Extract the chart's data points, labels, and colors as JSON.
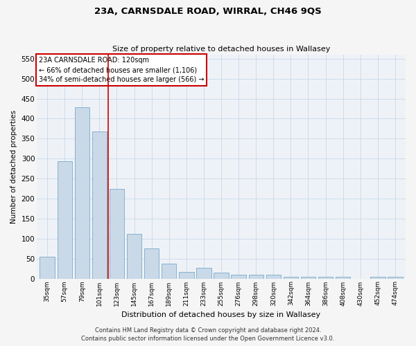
{
  "title": "23A, CARNSDALE ROAD, WIRRAL, CH46 9QS",
  "subtitle": "Size of property relative to detached houses in Wallasey",
  "xlabel": "Distribution of detached houses by size in Wallasey",
  "ylabel": "Number of detached properties",
  "categories": [
    "35sqm",
    "57sqm",
    "79sqm",
    "101sqm",
    "123sqm",
    "145sqm",
    "167sqm",
    "189sqm",
    "211sqm",
    "233sqm",
    "255sqm",
    "276sqm",
    "298sqm",
    "320sqm",
    "342sqm",
    "364sqm",
    "386sqm",
    "408sqm",
    "430sqm",
    "452sqm",
    "474sqm"
  ],
  "values": [
    55,
    293,
    428,
    368,
    224,
    112,
    75,
    38,
    16,
    26,
    14,
    9,
    9,
    9,
    5,
    5,
    5,
    5,
    0,
    5,
    4
  ],
  "bar_color": "#c9d9e8",
  "bar_edge_color": "#7aaac8",
  "vline_color": "#cc0000",
  "vline_x": 3.5,
  "annotation_title": "23A CARNSDALE ROAD: 120sqm",
  "annotation_line1": "← 66% of detached houses are smaller (1,106)",
  "annotation_line2": "34% of semi-detached houses are larger (566) →",
  "annotation_box_color": "#ffffff",
  "annotation_box_edge": "#cc0000",
  "grid_color": "#c8d8e8",
  "background_color": "#eef2f7",
  "fig_background": "#f5f5f5",
  "ylim": [
    0,
    560
  ],
  "yticks": [
    0,
    50,
    100,
    150,
    200,
    250,
    300,
    350,
    400,
    450,
    500,
    550
  ],
  "footer1": "Contains HM Land Registry data © Crown copyright and database right 2024.",
  "footer2": "Contains public sector information licensed under the Open Government Licence v3.0."
}
